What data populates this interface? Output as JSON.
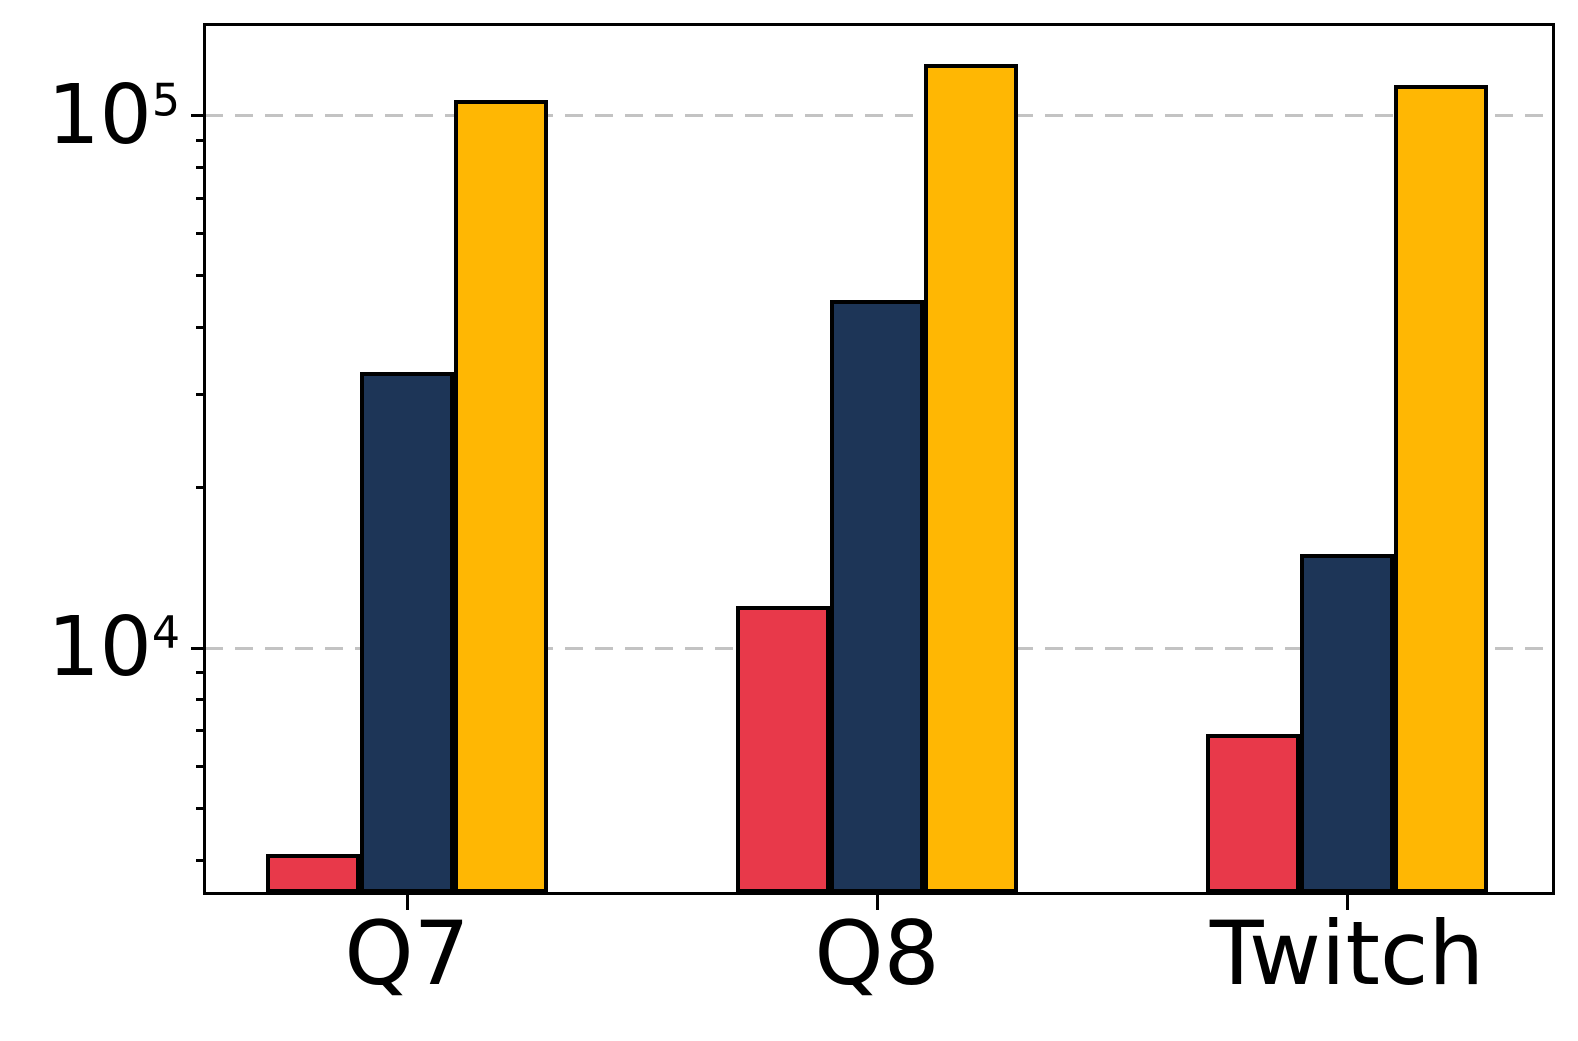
{
  "chart_data": {
    "type": "bar",
    "title": "",
    "xlabel": "",
    "ylabel": "",
    "categories": [
      "Q7",
      "Q8",
      "Twitch"
    ],
    "series": [
      {
        "name": "red",
        "color": "#e8394a",
        "edge_color": "#000000",
        "values": [
          4100,
          12000,
          6900
        ]
      },
      {
        "name": "navy",
        "color": "#1d3557",
        "edge_color": "#000000",
        "values": [
          33000,
          45000,
          15000
        ]
      },
      {
        "name": "orange",
        "color": "#ffb703",
        "edge_color": "#000000",
        "values": [
          107000,
          125000,
          114000
        ]
      }
    ],
    "yscale": "log",
    "ylim": [
      3470,
      148000
    ],
    "major_yticks": [
      {
        "value": 10000,
        "label_base": "10",
        "label_exponent": "4"
      },
      {
        "value": 100000,
        "label_base": "10",
        "label_exponent": "5"
      }
    ],
    "minor_yticks": [
      4000,
      5000,
      6000,
      7000,
      8000,
      9000,
      20000,
      30000,
      40000,
      50000,
      60000,
      70000,
      80000,
      90000
    ],
    "grid": {
      "axis": "y",
      "style": "dashed",
      "color": "#c3c3c3",
      "on": "major-ticks"
    },
    "legend": "none",
    "background": "#ffffff",
    "axis_color": "#000000"
  }
}
